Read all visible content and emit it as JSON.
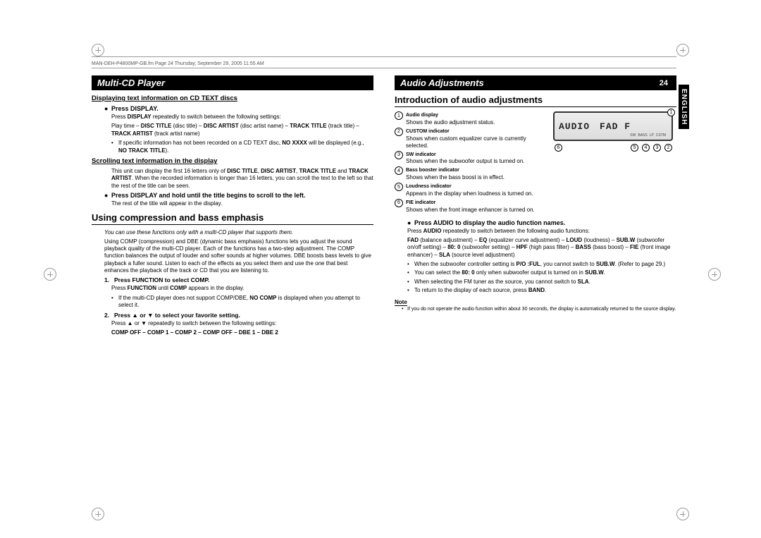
{
  "header": "MAN-DEH-P4800MP-GB.fm  Page 24  Thursday, September 29, 2005  11:55 AM",
  "vtab": "ENGLISH",
  "left": {
    "section_title": "Multi-CD Player",
    "h3_1": "Displaying text information on CD TEXT discs",
    "b1_label": "Press DISPLAY.",
    "b1_text1": "Press <b>DISPLAY</b> repeatedly to switch between the following settings:",
    "b1_text2": "Play time – <b>DISC TITLE</b> (disc title) – <b>DISC ARTIST</b> (disc artist name) – <b>TRACK TITLE</b> (track title) – <b>TRACK ARTIST</b> (track artist name)",
    "b1_sub": "If specific information has not been recorded on a CD TEXT disc, <b>NO XXXX</b> will be displayed (e.g., <b>NO TRACK TITLE</b>).",
    "h3_2": "Scrolling text information in the display",
    "scroll_text": "This unit can display the first 16 letters only of <b>DISC TITLE</b>, <b>DISC ARTIST</b>, <b>TRACK TITLE</b> and <b>TRACK ARTIST</b>. When the recorded information is longer than 16 letters, you can scroll the text to the left so that the rest of the title can be seen.",
    "b2_label": "Press DISPLAY and hold until the title begins to scroll to the left.",
    "b2_text": "The rest of the title will appear in the display.",
    "h2": "Using compression and bass emphasis",
    "italic": "You can use these functions only with a multi-CD player that supports them.",
    "para": "Using COMP (compression) and DBE (dynamic bass emphasis) functions lets you adjust the sound playback quality of the multi-CD player. Each of the functions has a two-step adjustment. The COMP function balances the output of louder and softer sounds at higher volumes. DBE boosts bass levels to give playback a fuller sound. Listen to each of the effects as you select them and use the one that best enhances the playback of the track or CD that you are listening to.",
    "n1_label": "Press FUNCTION to select COMP.",
    "n1_text": "Press <b>FUNCTION</b> until <b>COMP</b> appears in the display.",
    "n1_sub": "If the multi-CD player does not support COMP/DBE, <b>NO COMP</b> is displayed when you attempt to select it.",
    "n2_label": "Press ▲ or ▼ to select your favorite setting.",
    "n2_text": "Press ▲ or ▼ repeatedly to switch between the following settings:",
    "n2_seq": "COMP OFF – COMP 1 – COMP 2 – COMP OFF – DBE 1 – DBE 2"
  },
  "right": {
    "section_title": "Audio Adjustments",
    "page_num": "24",
    "h2": "Introduction of audio adjustments",
    "lcd_main1": "AUDIO",
    "lcd_main2": "FAD F",
    "indicators": [
      {
        "n": "1",
        "t": "Audio display",
        "d": "Shows the audio adjustment status."
      },
      {
        "n": "2",
        "t": "CUSTOM indicator",
        "d": "Shows when custom equalizer curve is currently selected."
      },
      {
        "n": "3",
        "t": "SW indicator",
        "d": "Shows when the subwoofer output is turned on."
      },
      {
        "n": "4",
        "t": "Bass booster indicator",
        "d": "Shows when the bass boost is in effect."
      },
      {
        "n": "5",
        "t": "Loudness indicator",
        "d": "Appears in the display when loudness is turned on."
      },
      {
        "n": "6",
        "t": "FIE indicator",
        "d": "Shows when the front image enhancer is turned on."
      }
    ],
    "b1_label": "Press AUDIO to display the audio function names.",
    "b1_text": "Press <b>AUDIO</b> repeatedly to switch between the following audio functions:",
    "b1_seq": "<b>FAD</b> (balance adjustment) – <b>EQ</b> (equalizer curve adjustment) – <b>LOUD</b> (loudness) – <b>SUB.W</b> (subwoofer on/off setting) – <b>80: 0</b> (subwoofer setting) – <b>HPF</b> (high pass filter) – <b>BASS</b> (bass boost) – <b>FIE</b> (front image enhancer) – <b>SLA</b> (source level adjustment)",
    "sub1": "When the subwoofer controller setting is <b>P/O :FUL</b>, you cannot switch to <b>SUB.W</b>. (Refer to page 29.)",
    "sub2": "You can select the <b>80: 0</b> only when subwoofer output is turned on in <b>SUB.W</b>.",
    "sub3": "When selecting the FM tuner as the source, you cannot switch to <b>SLA</b>.",
    "sub4": "To return to the display of each source, press <b>BAND</b>.",
    "note_hdr": "Note",
    "note": "If you do not operate the audio function within about 30 seconds, the display is automatically returned to the source display."
  }
}
